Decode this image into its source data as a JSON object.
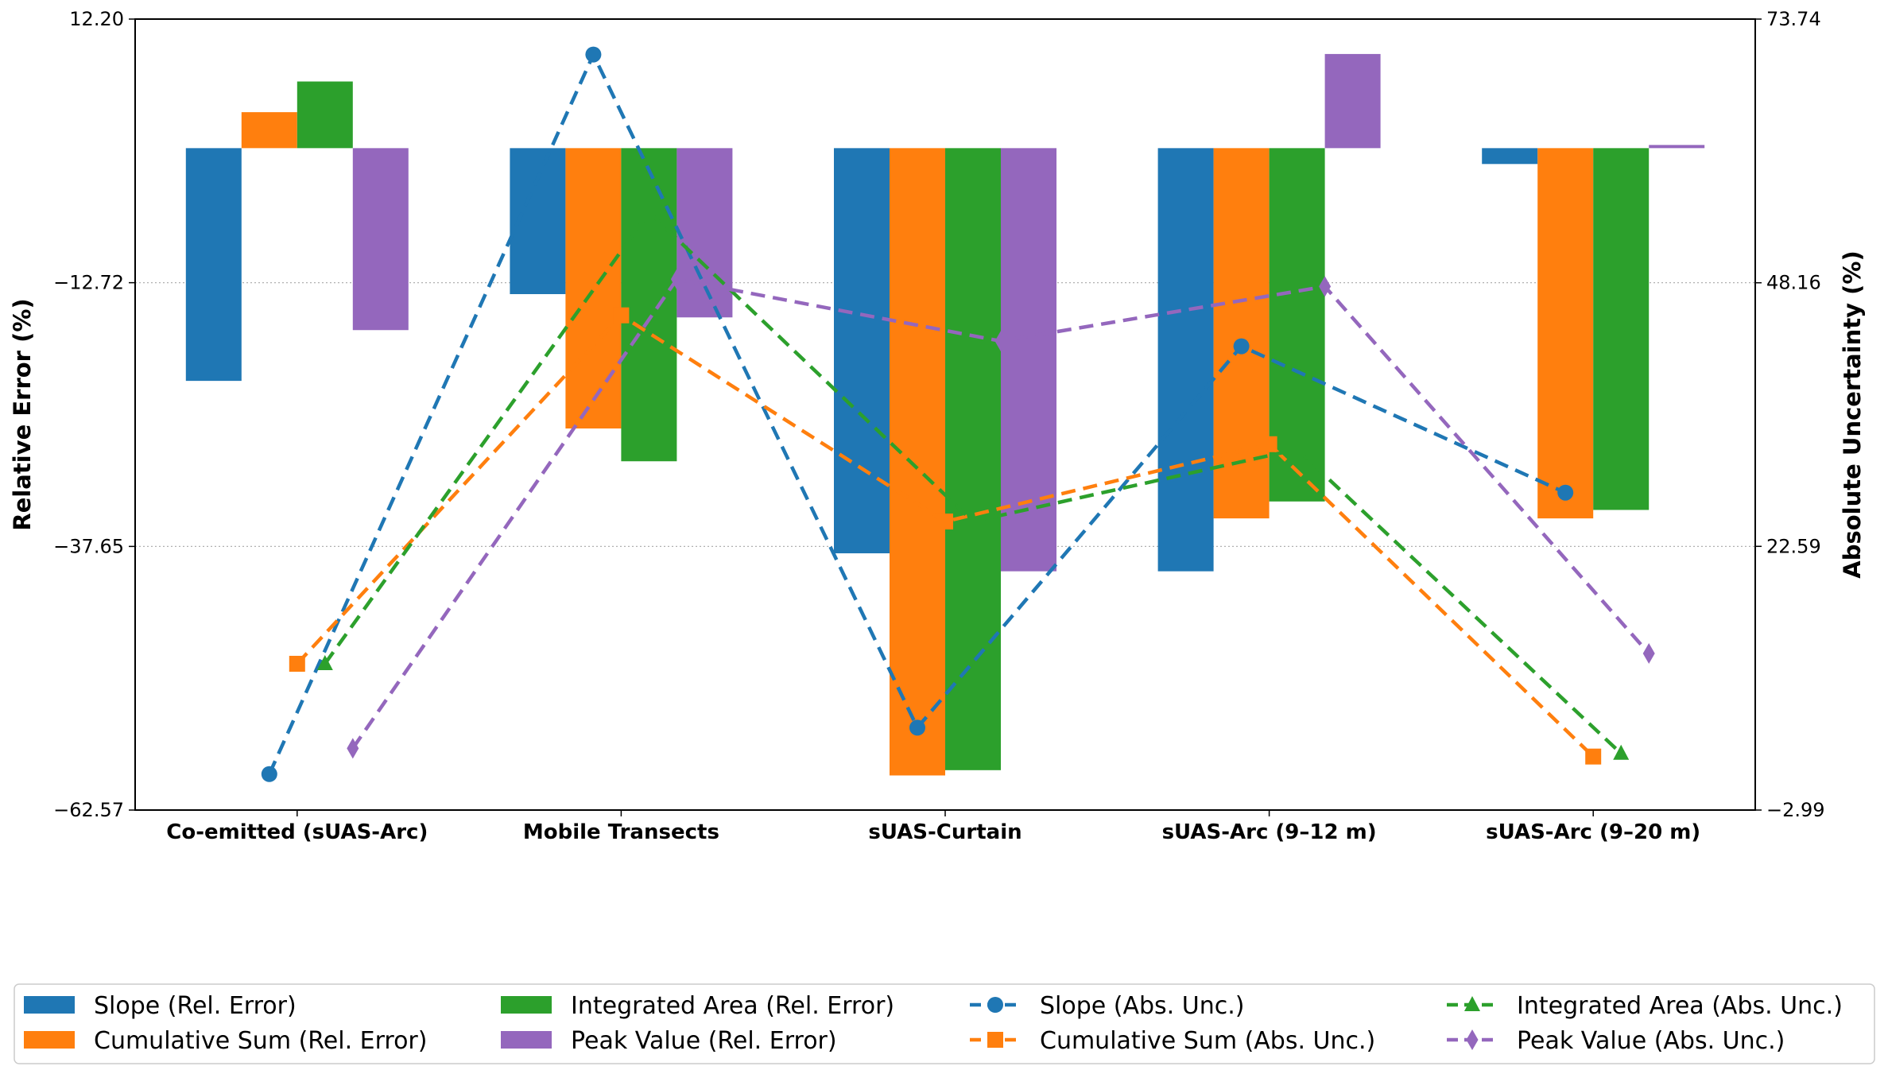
{
  "chart_data": {
    "type": "bar",
    "categories": [
      "Co-emitted (sUAS-Arc)",
      "Mobile Transects",
      "sUAS-Curtain",
      "sUAS-Arc (9–12 m)",
      "sUAS-Arc (9–20 m)"
    ],
    "ylabel": "Relative Error (%)",
    "y2label": "Absolute Uncertainty (%)",
    "ylim": [
      -62.57,
      12.2
    ],
    "y2lim": [
      -2.99,
      73.74
    ],
    "yticks": [
      "12.20",
      "-12.72",
      "-37.65",
      "-62.57"
    ],
    "y2ticks": [
      "73.74",
      "48.16",
      "22.59",
      "-2.99"
    ],
    "grid": "horizontal-dotted",
    "legend": "bottom",
    "colors": {
      "slope": "#1f77b4",
      "cumsum": "#ff7f0e",
      "area": "#2ca02c",
      "peak": "#9467bd"
    },
    "bar_series": [
      {
        "name": "Slope (Rel. Error)",
        "color": "#1f77b4",
        "values": [
          -22.0,
          -13.8,
          -38.3,
          -40.0,
          -1.5
        ]
      },
      {
        "name": "Cumulative Sum (Rel. Error)",
        "color": "#ff7f0e",
        "values": [
          3.4,
          -26.5,
          -59.3,
          -35.0,
          -35.0
        ]
      },
      {
        "name": "Integrated Area (Rel. Error)",
        "color": "#2ca02c",
        "values": [
          6.3,
          -29.6,
          -58.8,
          -33.4,
          -34.2
        ]
      },
      {
        "name": "Peak Value (Rel. Error)",
        "color": "#9467bd",
        "values": [
          -17.2,
          -16.0,
          -40.0,
          8.9,
          0.3
        ]
      }
    ],
    "line_series": [
      {
        "name": "Slope (Abs. Unc.)",
        "color": "#1f77b4",
        "marker": "circle",
        "values": [
          0.5,
          70.3,
          5.0,
          42.0,
          27.8
        ]
      },
      {
        "name": "Cumulative Sum (Abs. Unc.)",
        "color": "#ff7f0e",
        "marker": "square",
        "values": [
          11.2,
          45.0,
          25.0,
          32.5,
          2.2
        ]
      },
      {
        "name": "Integrated Area (Abs. Unc.)",
        "color": "#2ca02c",
        "marker": "triangle",
        "values": [
          11.2,
          55.0,
          25.0,
          32.0,
          2.5
        ]
      },
      {
        "name": "Peak Value (Abs. Unc.)",
        "color": "#9467bd",
        "marker": "diamond",
        "values": [
          3.0,
          48.5,
          42.5,
          47.8,
          12.2
        ]
      }
    ]
  }
}
